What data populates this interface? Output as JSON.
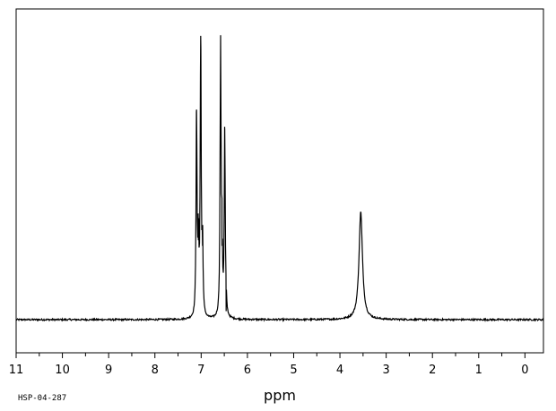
{
  "chart_data": {
    "type": "line",
    "title": "",
    "xlabel": "ppm",
    "ylabel": "",
    "spectrum_id": "HSP-04-287",
    "x_reversed": true,
    "xlim": [
      11.0,
      -0.4
    ],
    "ylim": [
      0,
      1
    ],
    "grid": false,
    "legend": "none",
    "x_ticks": [
      11,
      10,
      9,
      8,
      7,
      6,
      5,
      4,
      3,
      2,
      1,
      0
    ],
    "x_minor_step": 0.5,
    "baseline": 0.0,
    "peaks": [
      {
        "ppm": 7.1,
        "height": 0.74
      },
      {
        "ppm": 7.06,
        "height": 0.28
      },
      {
        "ppm": 7.01,
        "height": 1.0
      },
      {
        "ppm": 6.97,
        "height": 0.26
      },
      {
        "ppm": 6.58,
        "height": 1.0
      },
      {
        "ppm": 6.55,
        "height": 0.26
      },
      {
        "ppm": 6.49,
        "height": 0.67
      },
      {
        "ppm": 6.46,
        "height": 0.03
      },
      {
        "ppm": 3.55,
        "height": 0.38
      }
    ],
    "line_color": "#000000"
  }
}
